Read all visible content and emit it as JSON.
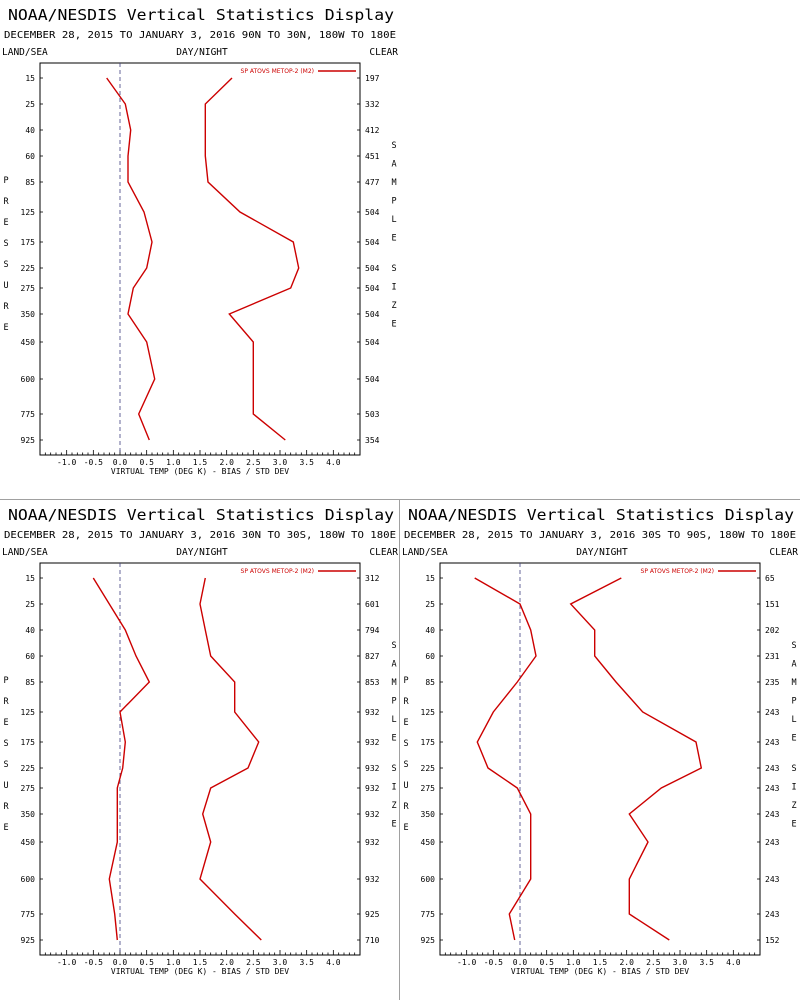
{
  "chart_data": [
    {
      "type": "line",
      "title": "NOAA/NESDIS Vertical Statistics Display",
      "subtitle": "DECEMBER 28, 2015 TO JANUARY 3, 2016  90N TO 30N, 180W TO 180E",
      "corner_labels": {
        "left": "LAND/SEA",
        "center": "DAY/NIGHT",
        "right": "CLEAR"
      },
      "xlabel": "VIRTUAL TEMP (DEG K) - BIAS / STD DEV",
      "left_axis_label": "PRESSURE",
      "right_axis_label": "SAMPLE SIZE",
      "xlim": [
        -1.5,
        4.5
      ],
      "x_ticks": [
        "-1.0",
        "-0.5",
        "0.0",
        "0.5",
        "1.0",
        "1.5",
        "2.0",
        "2.5",
        "3.0",
        "3.5",
        "4.0"
      ],
      "legend": {
        "label": "SP ATOVS METOP-2 (M2)",
        "position": "top-right"
      },
      "pressure_levels": [
        "15",
        "25",
        "40",
        "60",
        "85",
        "125",
        "175",
        "225",
        "275",
        "350",
        "450",
        "600",
        "775",
        "925"
      ],
      "sample_size": [
        "197",
        "332",
        "412",
        "451",
        "477",
        "504",
        "504",
        "504",
        "504",
        "504",
        "504",
        "504",
        "503",
        "354"
      ],
      "series": [
        {
          "kind": "bias",
          "values": [
            -0.25,
            0.1,
            0.2,
            0.15,
            0.15,
            0.45,
            0.6,
            0.5,
            0.25,
            0.15,
            0.5,
            0.65,
            0.35,
            0.55
          ]
        },
        {
          "kind": "std_dev",
          "values": [
            2.1,
            1.6,
            1.6,
            1.6,
            1.65,
            2.25,
            3.25,
            3.35,
            3.2,
            2.05,
            2.5,
            2.5,
            2.5,
            3.1
          ]
        }
      ]
    },
    {
      "type": "line",
      "title": "NOAA/NESDIS Vertical Statistics Display",
      "subtitle": "DECEMBER 28, 2015 TO JANUARY 3, 2016  30N TO 30S, 180W TO 180E",
      "corner_labels": {
        "left": "LAND/SEA",
        "center": "DAY/NIGHT",
        "right": "CLEAR"
      },
      "xlabel": "VIRTUAL TEMP (DEG K) - BIAS / STD DEV",
      "left_axis_label": "PRESSURE",
      "right_axis_label": "SAMPLE SIZE",
      "xlim": [
        -1.5,
        4.5
      ],
      "x_ticks": [
        "-1.0",
        "-0.5",
        "0.0",
        "0.5",
        "1.0",
        "1.5",
        "2.0",
        "2.5",
        "3.0",
        "3.5",
        "4.0"
      ],
      "legend": {
        "label": "SP ATOVS METOP-2 (M2)",
        "position": "top-right"
      },
      "pressure_levels": [
        "15",
        "25",
        "40",
        "60",
        "85",
        "125",
        "175",
        "225",
        "275",
        "350",
        "450",
        "600",
        "775",
        "925"
      ],
      "sample_size": [
        "312",
        "601",
        "794",
        "827",
        "853",
        "932",
        "932",
        "932",
        "932",
        "932",
        "932",
        "932",
        "925",
        "710"
      ],
      "series": [
        {
          "kind": "bias",
          "values": [
            -0.5,
            -0.2,
            0.1,
            0.3,
            0.55,
            0.0,
            0.1,
            0.05,
            -0.05,
            -0.05,
            -0.05,
            -0.2,
            -0.1,
            -0.05
          ]
        },
        {
          "kind": "std_dev",
          "values": [
            1.6,
            1.5,
            1.6,
            1.7,
            2.15,
            2.15,
            2.6,
            2.4,
            1.7,
            1.55,
            1.7,
            1.5,
            2.15,
            2.65
          ]
        }
      ]
    },
    {
      "type": "line",
      "title": "NOAA/NESDIS Vertical Statistics Display",
      "subtitle": "DECEMBER 28, 2015 TO JANUARY 3, 2016  30S TO 90S, 180W TO 180E",
      "corner_labels": {
        "left": "LAND/SEA",
        "center": "DAY/NIGHT",
        "right": "CLEAR"
      },
      "xlabel": "VIRTUAL TEMP (DEG K) - BIAS / STD DEV",
      "left_axis_label": "PRESSURE",
      "right_axis_label": "SAMPLE SIZE",
      "xlim": [
        -1.5,
        4.5
      ],
      "x_ticks": [
        "-1.0",
        "-0.5",
        "0.0",
        "0.5",
        "1.0",
        "1.5",
        "2.0",
        "2.5",
        "3.0",
        "3.5",
        "4.0"
      ],
      "legend": {
        "label": "SP ATOVS METOP-2 (M2)",
        "position": "top-right"
      },
      "pressure_levels": [
        "15",
        "25",
        "40",
        "60",
        "85",
        "125",
        "175",
        "225",
        "275",
        "350",
        "450",
        "600",
        "775",
        "925"
      ],
      "sample_size": [
        "65",
        "151",
        "202",
        "231",
        "235",
        "243",
        "243",
        "243",
        "243",
        "243",
        "243",
        "243",
        "243",
        "152"
      ],
      "series": [
        {
          "kind": "bias",
          "values": [
            -0.85,
            0.0,
            0.2,
            0.3,
            -0.05,
            -0.5,
            -0.8,
            -0.6,
            -0.05,
            0.2,
            0.2,
            0.2,
            -0.2,
            -0.1
          ]
        },
        {
          "kind": "std_dev",
          "values": [
            1.9,
            0.95,
            1.4,
            1.4,
            1.8,
            2.3,
            3.3,
            3.4,
            2.65,
            2.05,
            2.4,
            2.05,
            2.05,
            2.8
          ]
        }
      ]
    }
  ],
  "colors": {
    "series": "#cc0000",
    "zero_line": "#404080",
    "axis": "#000000"
  }
}
